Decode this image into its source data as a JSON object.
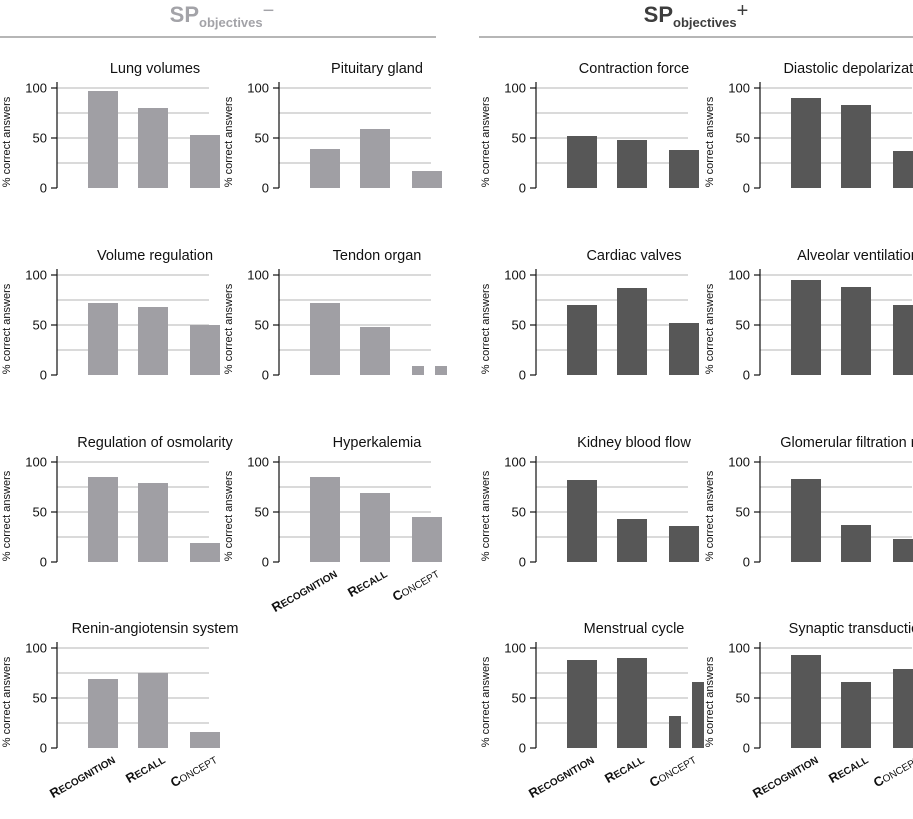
{
  "header": {
    "left": {
      "main": "SP",
      "sub": "objectives",
      "sign": "−",
      "color": "#a3a3a8"
    },
    "right": {
      "main": "SP",
      "sub": "objectives",
      "sign": "+",
      "color": "#3d3d3d"
    }
  },
  "colors": {
    "minus": "#a09fa4",
    "plus": "#575757",
    "grid": "#b5b5b5",
    "axis": "#111111"
  },
  "axis": {
    "ylabel": "% correct answers",
    "yticks": [
      0,
      50,
      100
    ],
    "ylim": [
      0,
      100
    ]
  },
  "xcategories": [
    {
      "first": "R",
      "rest": "ECOGNITION"
    },
    {
      "first": "R",
      "rest": "ECALL"
    },
    {
      "first": "C",
      "rest": "ONCEPT"
    }
  ],
  "chart_data": [
    {
      "type": "bar",
      "group": "SPobjectives-",
      "title": "Lung volumes",
      "categories": [
        "Recognition",
        "Recall",
        "Concept"
      ],
      "values": [
        97,
        80,
        53
      ],
      "ylim": [
        0,
        100
      ],
      "ylabel": "% correct answers"
    },
    {
      "type": "bar",
      "group": "SPobjectives-",
      "title": "Pituitary gland",
      "categories": [
        "Recognition",
        "Recall",
        "Concept"
      ],
      "values": [
        39,
        59,
        17
      ],
      "ylim": [
        0,
        100
      ],
      "ylabel": "% correct answers"
    },
    {
      "type": "bar",
      "group": "SPobjectives+",
      "title": "Contraction force",
      "categories": [
        "Recognition",
        "Recall",
        "Concept"
      ],
      "values": [
        52,
        48,
        38
      ],
      "ylim": [
        0,
        100
      ],
      "ylabel": "% correct answers"
    },
    {
      "type": "bar",
      "group": "SPobjectives+",
      "title": "Diastolic depolarization",
      "categories": [
        "Recognition",
        "Recall",
        "Concept"
      ],
      "values": [
        90,
        83,
        37
      ],
      "ylim": [
        0,
        100
      ],
      "ylabel": "% correct answers"
    },
    {
      "type": "bar",
      "group": "SPobjectives-",
      "title": "Volume regulation",
      "categories": [
        "Recognition",
        "Recall",
        "Concept"
      ],
      "values": [
        72,
        68,
        50
      ],
      "ylim": [
        0,
        100
      ],
      "ylabel": "% correct answers"
    },
    {
      "type": "bar",
      "group": "SPobjectives-",
      "title": "Tendon organ",
      "categories": [
        "Recognition",
        "Recall",
        "Concept"
      ],
      "values": [
        72,
        48,
        [
          9,
          9
        ]
      ],
      "ylim": [
        0,
        100
      ],
      "ylabel": "% correct answers"
    },
    {
      "type": "bar",
      "group": "SPobjectives+",
      "title": "Cardiac valves",
      "categories": [
        "Recognition",
        "Recall",
        "Concept"
      ],
      "values": [
        70,
        87,
        52
      ],
      "ylim": [
        0,
        100
      ],
      "ylabel": "% correct answers"
    },
    {
      "type": "bar",
      "group": "SPobjectives+",
      "title": "Alveolar ventilation",
      "categories": [
        "Recognition",
        "Recall",
        "Concept"
      ],
      "values": [
        95,
        88,
        70
      ],
      "ylim": [
        0,
        100
      ],
      "ylabel": "% correct answers"
    },
    {
      "type": "bar",
      "group": "SPobjectives-",
      "title": "Regulation of osmolarity",
      "categories": [
        "Recognition",
        "Recall",
        "Concept"
      ],
      "values": [
        85,
        79,
        19
      ],
      "ylim": [
        0,
        100
      ],
      "ylabel": "% correct answers"
    },
    {
      "type": "bar",
      "group": "SPobjectives-",
      "title": "Hyperkalemia",
      "categories": [
        "Recognition",
        "Recall",
        "Concept"
      ],
      "values": [
        85,
        69,
        45
      ],
      "ylim": [
        0,
        100
      ],
      "ylabel": "% correct answers"
    },
    {
      "type": "bar",
      "group": "SPobjectives+",
      "title": "Kidney blood flow",
      "categories": [
        "Recognition",
        "Recall",
        "Concept"
      ],
      "values": [
        82,
        43,
        36
      ],
      "ylim": [
        0,
        100
      ],
      "ylabel": "% correct answers"
    },
    {
      "type": "bar",
      "group": "SPobjectives+",
      "title": "Glomerular filtration rate",
      "categories": [
        "Recognition",
        "Recall",
        "Concept"
      ],
      "values": [
        83,
        37,
        23
      ],
      "ylim": [
        0,
        100
      ],
      "ylabel": "% correct answers"
    },
    {
      "type": "bar",
      "group": "SPobjectives-",
      "title": "Renin-angiotensin system",
      "categories": [
        "Recognition",
        "Recall",
        "Concept"
      ],
      "values": [
        69,
        75,
        16
      ],
      "ylim": [
        0,
        100
      ],
      "ylabel": "% correct answers"
    },
    {
      "type": "bar",
      "group": "SPobjectives+",
      "title": "Menstrual cycle",
      "categories": [
        "Recognition",
        "Recall",
        "Concept"
      ],
      "values": [
        88,
        90,
        [
          32,
          66
        ]
      ],
      "ylim": [
        0,
        100
      ],
      "ylabel": "% correct answers"
    },
    {
      "type": "bar",
      "group": "SPobjectives+",
      "title": "Synaptic transduction",
      "categories": [
        "Recognition",
        "Recall",
        "Concept"
      ],
      "values": [
        93,
        66,
        79
      ],
      "ylim": [
        0,
        100
      ],
      "ylabel": "% correct answers"
    }
  ]
}
